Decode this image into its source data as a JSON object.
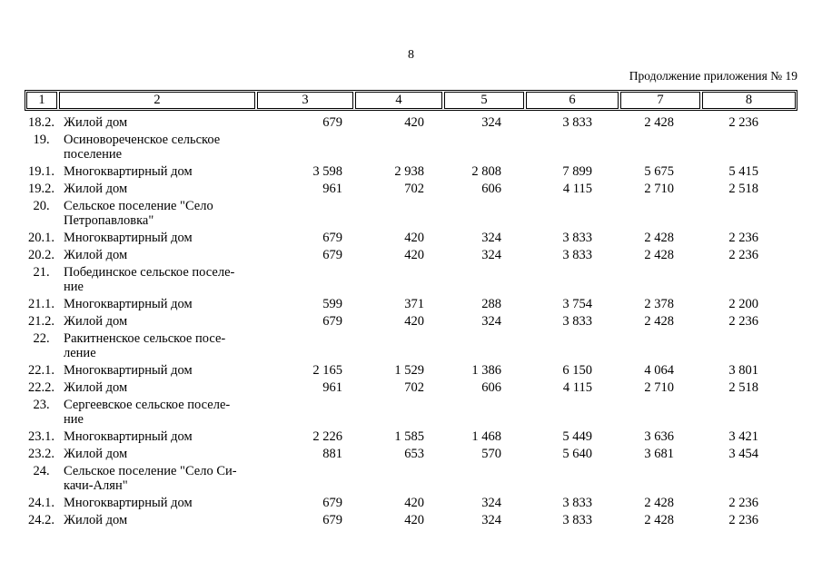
{
  "page": {
    "number": "8",
    "continuation": "Продолжение приложения № 19"
  },
  "table": {
    "columns": [
      "1",
      "2",
      "3",
      "4",
      "5",
      "6",
      "7",
      "8"
    ],
    "rows": [
      {
        "num": "18.2.",
        "name": "Жилой дом",
        "values": [
          "679",
          "420",
          "324",
          "3 833",
          "2 428",
          "2 236"
        ]
      },
      {
        "num": "19.",
        "name": "Осиновореченское сельское\nпоселение",
        "values": []
      },
      {
        "num": "19.1.",
        "name": "Многоквартирный дом",
        "values": [
          "3 598",
          "2 938",
          "2 808",
          "7 899",
          "5 675",
          "5 415"
        ]
      },
      {
        "num": "19.2.",
        "name": "Жилой дом",
        "values": [
          "961",
          "702",
          "606",
          "4 115",
          "2 710",
          "2 518"
        ]
      },
      {
        "num": "20.",
        "name": "Сельское поселение \"Село\nПетропавловка\"",
        "values": []
      },
      {
        "num": "20.1.",
        "name": "Многоквартирный дом",
        "values": [
          "679",
          "420",
          "324",
          "3 833",
          "2 428",
          "2 236"
        ]
      },
      {
        "num": "20.2.",
        "name": "Жилой дом",
        "values": [
          "679",
          "420",
          "324",
          "3 833",
          "2 428",
          "2 236"
        ]
      },
      {
        "num": "21.",
        "name": "Побединское сельское поселе-\nние",
        "values": []
      },
      {
        "num": "21.1.",
        "name": "Многоквартирный дом",
        "values": [
          "599",
          "371",
          "288",
          "3 754",
          "2 378",
          "2 200"
        ]
      },
      {
        "num": "21.2.",
        "name": "Жилой дом",
        "values": [
          "679",
          "420",
          "324",
          "3 833",
          "2 428",
          "2 236"
        ]
      },
      {
        "num": "22.",
        "name": "Ракитненское сельское посе-\nление",
        "values": []
      },
      {
        "num": "22.1.",
        "name": "Многоквартирный дом",
        "values": [
          "2 165",
          "1 529",
          "1 386",
          "6 150",
          "4 064",
          "3 801"
        ]
      },
      {
        "num": "22.2.",
        "name": "Жилой дом",
        "values": [
          "961",
          "702",
          "606",
          "4 115",
          "2 710",
          "2 518"
        ]
      },
      {
        "num": "23.",
        "name": "Сергеевское сельское поселе-\nние",
        "values": []
      },
      {
        "num": "23.1.",
        "name": "Многоквартирный дом",
        "values": [
          "2 226",
          "1 585",
          "1 468",
          "5 449",
          "3 636",
          "3 421"
        ]
      },
      {
        "num": "23.2.",
        "name": "Жилой дом",
        "values": [
          "881",
          "653",
          "570",
          "5 640",
          "3 681",
          "3 454"
        ]
      },
      {
        "num": "24.",
        "name": "Сельское поселение \"Село Си-\nкачи-Алян\"",
        "values": []
      },
      {
        "num": "24.1.",
        "name": "Многоквартирный дом",
        "values": [
          "679",
          "420",
          "324",
          "3 833",
          "2 428",
          "2 236"
        ]
      },
      {
        "num": "24.2.",
        "name": "Жилой дом",
        "values": [
          "679",
          "420",
          "324",
          "3 833",
          "2 428",
          "2 236"
        ]
      }
    ]
  }
}
